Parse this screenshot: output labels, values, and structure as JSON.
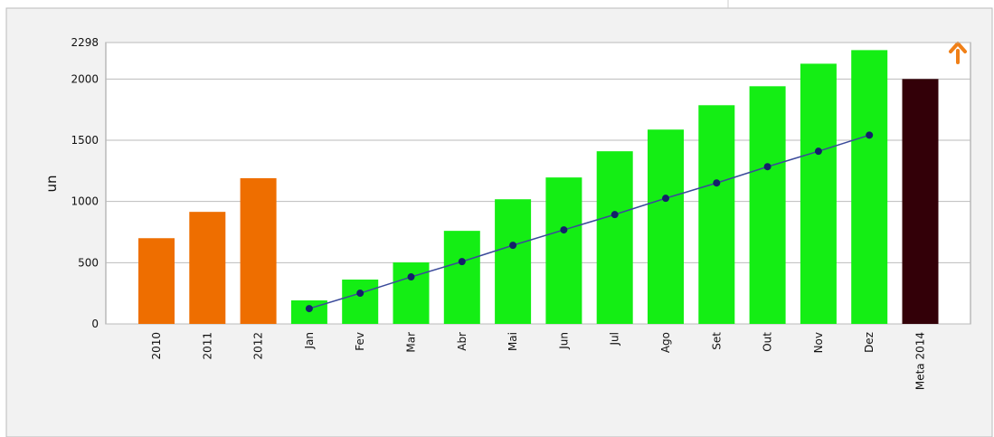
{
  "chart_data": {
    "type": "bar",
    "y_label": "un",
    "categories": [
      "2010",
      "2011",
      "2012",
      "Jan",
      "Fev",
      "Mar",
      "Abr",
      "Mai",
      "Jun",
      "Jul",
      "Ago",
      "Set",
      "Out",
      "Nov",
      "Dez",
      "Meta 2014"
    ],
    "series": [
      {
        "type": "bar",
        "values": [
          700,
          915,
          1190,
          192,
          362,
          502,
          760,
          1018,
          1196,
          1410,
          1587,
          1786,
          1941,
          2125,
          2236,
          2000
        ],
        "colors": [
          "#ee6e00",
          "#ee6e00",
          "#ee6e00",
          "#14ee14",
          "#14ee14",
          "#14ee14",
          "#14ee14",
          "#14ee14",
          "#14ee14",
          "#14ee14",
          "#14ee14",
          "#14ee14",
          "#14ee14",
          "#14ee14",
          "#14ee14",
          "#330008"
        ]
      },
      {
        "type": "line",
        "color": "#3a4a9a",
        "marker_color": "#14206a",
        "values": [
          null,
          null,
          null,
          125,
          251,
          384,
          509,
          642,
          768,
          893,
          1026,
          1151,
          1284,
          1410,
          1542,
          null
        ]
      }
    ],
    "ylim": [
      0,
      2298
    ],
    "yticks": [
      0,
      500,
      1000,
      1500,
      2000,
      2298
    ],
    "grid": true
  }
}
